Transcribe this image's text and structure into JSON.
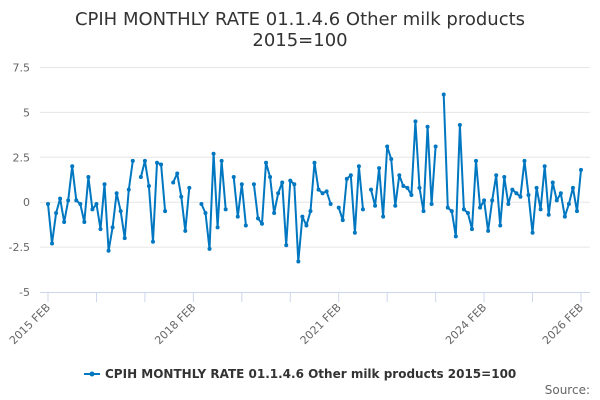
{
  "chart_data": {
    "type": "line",
    "title": "CPIH MONTHLY RATE 01.1.4.6 Other milk products",
    "subtitle": "2015=100",
    "xlabel": "",
    "ylabel": "",
    "ylim": [
      -5,
      7.5
    ],
    "yticks": [
      "7.5",
      "5",
      "2.5",
      "0",
      "-2.5",
      "-5"
    ],
    "ytick_values": [
      7.5,
      5,
      2.5,
      0,
      -2.5,
      -5
    ],
    "xtick_labels": [
      "2015 FEB",
      "2018 FEB",
      "2021 FEB",
      "2024 FEB",
      "2026 FEB"
    ],
    "grid": true,
    "legend_position": "bottom",
    "color": "#0077c0",
    "source_label": "Source:",
    "x_start": "2015 FEB",
    "x_end": "2026 FEB",
    "series": [
      {
        "name": "CPIH MONTHLY RATE 01.1.4.6 Other milk products 2015=100",
        "values": [
          -0.1,
          -2.3,
          -0.6,
          0.2,
          -1.1,
          0.1,
          2.0,
          0.1,
          -0.1,
          -1.1,
          1.4,
          -0.4,
          -0.1,
          -1.5,
          1.0,
          -2.7,
          -1.4,
          0.5,
          -0.5,
          -2.0,
          0.7,
          2.3,
          null,
          1.4,
          2.3,
          0.9,
          -2.2,
          2.2,
          2.1,
          -0.5,
          null,
          1.1,
          1.6,
          0.3,
          -1.6,
          0.8,
          null,
          null,
          -0.1,
          -0.6,
          -2.6,
          2.7,
          -1.4,
          2.3,
          -0.4,
          null,
          1.4,
          -0.8,
          1.0,
          -1.3,
          null,
          1.0,
          -0.9,
          -1.2,
          2.2,
          1.4,
          -0.6,
          0.5,
          1.1,
          -2.4,
          1.2,
          1.0,
          -3.3,
          -0.8,
          -1.3,
          -0.5,
          2.2,
          0.7,
          0.5,
          0.6,
          -0.1,
          null,
          -0.3,
          -1.0,
          1.3,
          1.5,
          -1.7,
          2.0,
          -0.4,
          null,
          0.7,
          -0.2,
          1.9,
          -0.8,
          3.1,
          2.4,
          -0.2,
          1.5,
          0.9,
          0.8,
          0.4,
          4.5,
          0.8,
          -0.5,
          4.2,
          -0.1,
          3.1,
          null,
          6.0,
          -0.3,
          -0.5,
          -1.9,
          4.3,
          -0.4,
          -0.6,
          -1.5,
          2.3,
          -0.3,
          0.1,
          -1.6,
          0.1,
          1.5,
          -1.3,
          1.4,
          -0.1,
          0.7,
          0.5,
          0.3,
          2.3,
          0.4,
          -1.7,
          0.8,
          -0.4,
          2.0,
          -0.7,
          1.1,
          0.1,
          0.5,
          -0.8,
          -0.1,
          0.8,
          -0.5,
          1.8
        ]
      }
    ]
  }
}
